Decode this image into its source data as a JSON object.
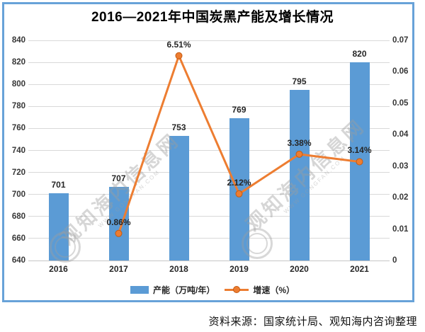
{
  "title": "2016—2021年中国炭黑产能及增长情况",
  "source_note": "资料来源：国家统计局、观知海内咨询整理",
  "watermark": {
    "text": "观知海内信息网",
    "subtext": "WWW.GONGFAN.COM"
  },
  "colors": {
    "bar": "#5B9BD5",
    "line": "#ED7D31",
    "frame_border": "#68A2D8",
    "gridline": "#D9D9D9"
  },
  "chart_data": {
    "type": "bar",
    "subtype": "combo-bar-line-dual-axis",
    "title": "2016—2021年中国炭黑产能及增长情况",
    "categories": [
      "2016",
      "2017",
      "2018",
      "2019",
      "2020",
      "2021"
    ],
    "series": [
      {
        "name": "产能（万吨/年）",
        "type": "bar",
        "axis": "left",
        "color": "#5B9BD5",
        "values": [
          701,
          707,
          753,
          769,
          795,
          820
        ],
        "labels": [
          "701",
          "707",
          "753",
          "769",
          "795",
          "820"
        ]
      },
      {
        "name": "增速（%）",
        "type": "line",
        "axis": "right",
        "color": "#ED7D31",
        "x": [
          "2017",
          "2018",
          "2019",
          "2020",
          "2021"
        ],
        "values": [
          0.0086,
          0.0651,
          0.0212,
          0.0338,
          0.0314
        ],
        "labels": [
          "0.86%",
          "6.51%",
          "2.12%",
          "3.38%",
          "3.14%"
        ]
      }
    ],
    "left_axis": {
      "min": 640,
      "max": 840,
      "step": 20,
      "tick_labels": [
        "640",
        "660",
        "680",
        "700",
        "720",
        "740",
        "760",
        "780",
        "800",
        "820",
        "840"
      ]
    },
    "right_axis": {
      "min": 0,
      "max": 0.07,
      "step": 0.01,
      "tick_labels": [
        "0",
        "0.01",
        "0.02",
        "0.03",
        "0.04",
        "0.05",
        "0.06",
        "0.07"
      ]
    },
    "grid": true,
    "legend_position": "bottom",
    "xlabel": "",
    "ylabel": ""
  }
}
